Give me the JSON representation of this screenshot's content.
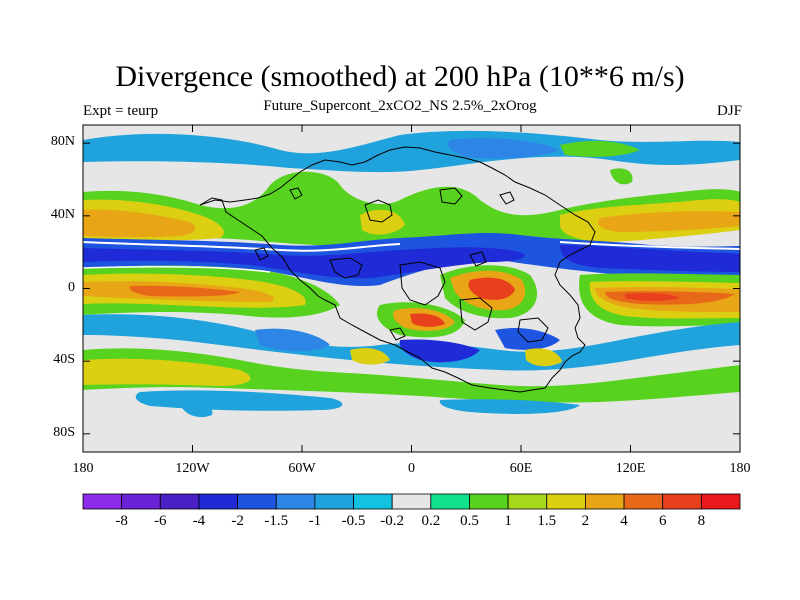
{
  "title": "Divergence (smoothed) at 200 hPa (10**6 m/s)",
  "subtitle": "Future_Supercont_2xCO2_NS 2.5%_2xOrog",
  "left_label": "Expt = teurp",
  "right_label": "DJF",
  "map": {
    "projection": "cylindrical equidistant",
    "lon_range": [
      -180,
      180
    ],
    "lat_range": [
      -90,
      90
    ],
    "x_ticks": [
      {
        "label": "180",
        "lon": -180
      },
      {
        "label": "120W",
        "lon": -120
      },
      {
        "label": "60W",
        "lon": -60
      },
      {
        "label": "0",
        "lon": 0
      },
      {
        "label": "60E",
        "lon": 60
      },
      {
        "label": "120E",
        "lon": 120
      },
      {
        "label": "180",
        "lon": 180
      }
    ],
    "y_ticks": [
      {
        "label": "80N",
        "lat": 80
      },
      {
        "label": "40N",
        "lat": 40
      },
      {
        "label": "0",
        "lat": 0
      },
      {
        "label": "40S",
        "lat": -40
      },
      {
        "label": "80S",
        "lat": -80
      }
    ]
  },
  "colorbar": {
    "colors": [
      "#8c2be8",
      "#6a22d6",
      "#4b1fc6",
      "#1f2bd6",
      "#1e55e0",
      "#2d86e6",
      "#20a3dc",
      "#13c1e0",
      "#e6e6e6",
      "#13e08a",
      "#57d21e",
      "#a6d91e",
      "#dccf12",
      "#e8a515",
      "#e8681a",
      "#e8401c",
      "#e8181c"
    ],
    "labels": [
      "-8",
      "-6",
      "-4",
      "-2",
      "-1.5",
      "-1",
      "-0.5",
      "-0.2",
      "0.2",
      "0.5",
      "1",
      "1.5",
      "2",
      "4",
      "6",
      "8"
    ]
  }
}
